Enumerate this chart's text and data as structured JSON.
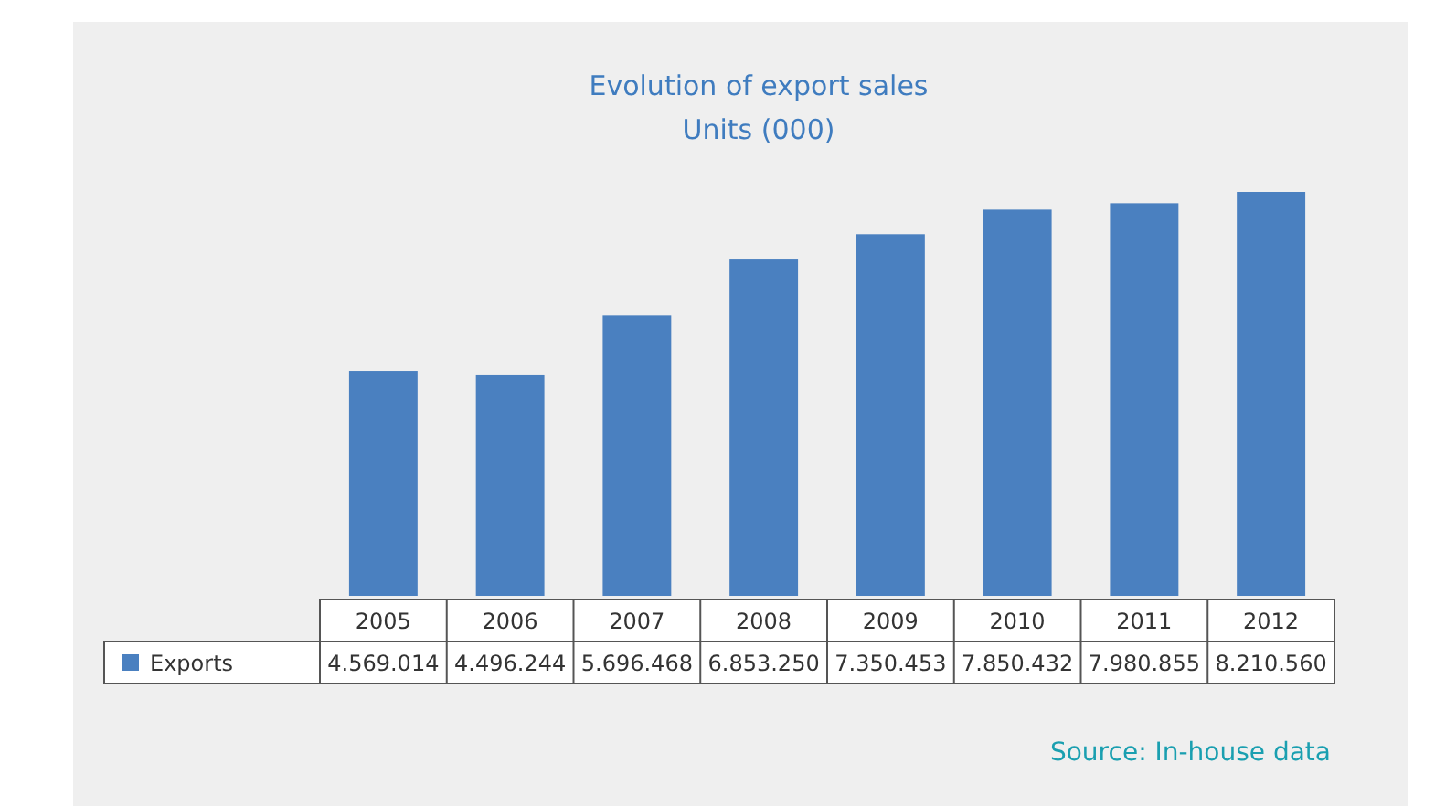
{
  "chart_data": {
    "type": "bar",
    "title": "Evolution of export sales",
    "subtitle": "Units (000)",
    "categories": [
      "2005",
      "2006",
      "2007",
      "2008",
      "2009",
      "2010",
      "2011",
      "2012"
    ],
    "series": [
      {
        "name": "Exports",
        "color": "#4a80c0",
        "values": [
          4569014,
          4496244,
          5696468,
          6853250,
          7350453,
          7850432,
          7980855,
          8210560
        ],
        "value_labels": [
          "4.569.014",
          "4.496.244",
          "5.696.468",
          "6.853.250",
          "7.350.453",
          "7.850.432",
          "7.980.855",
          "8.210.560"
        ]
      }
    ],
    "legend": "bottom left",
    "annotations": [
      "Source: In-house data"
    ]
  }
}
